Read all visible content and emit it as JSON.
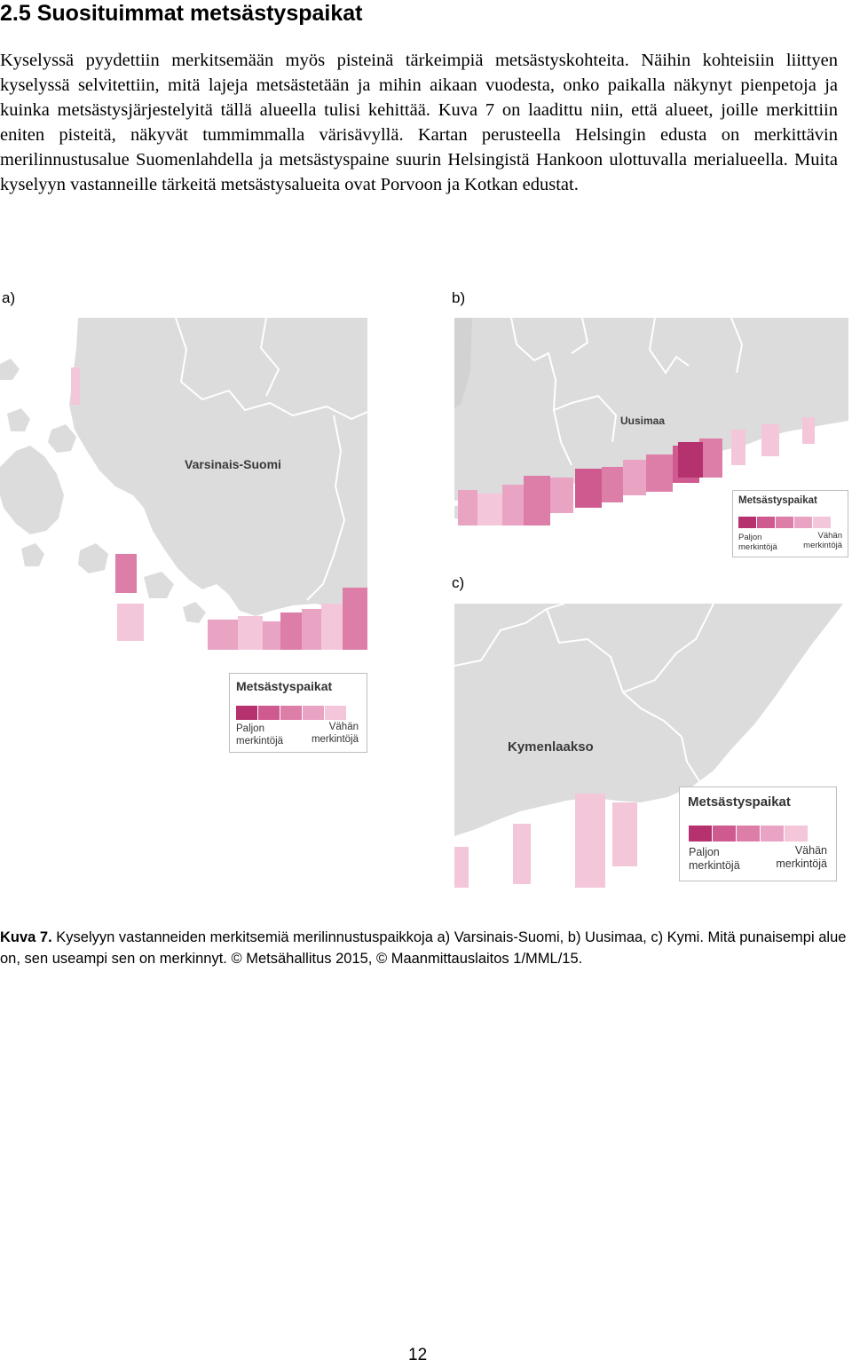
{
  "section": {
    "heading": "2.5 Suosituimmat metsästyspaikat",
    "body": "Kyselyssä pyydettiin merkitsemään myös pisteinä tärkeimpiä metsästyskohteita. Näihin kohteisiin liittyen kyselyssä selvitettiin, mitä lajeja metsästetään ja mihin aikaan vuodesta, onko paikalla näkynyt pienpetoja ja kuinka metsästysjärjestelyitä tällä alueella tulisi kehittää. Kuva 7 on laadittu niin, että alueet, joille merkittiin eniten pisteitä, näkyvät tummimmalla värisävyllä. Kartan perusteella Helsingin edusta on merkittävin merilinnustusalue Suomenlahdella ja metsästyspaine suurin Helsingistä Hankoon ulottuvalla merialueella. Muita kyselyyn vastanneille tärkeitä metsästysalueita ovat Porvoon ja Kotkan edustat."
  },
  "figure": {
    "panel_a": {
      "label": "a)",
      "region_label": "Varsinais-Suomi",
      "legend": {
        "title": "Metsästyspaikat",
        "low_label": "Paljon\nmerkintöjä",
        "high_label": "Vähän\nmerkintöjä"
      }
    },
    "panel_b": {
      "label": "b)",
      "region_label": "Uusimaa",
      "legend": {
        "title": "Metsästyspaikat",
        "low_label": "Paljon\nmerkintöjä",
        "high_label": "Vähän\nmerkintöjä"
      }
    },
    "panel_c": {
      "label": "c)",
      "region_label": "Kymenlaakso",
      "legend": {
        "title": "Metsästyspaikat",
        "low_label": "Paljon\nmerkintöjä",
        "high_label": "Vähän\nmerkintöjä"
      }
    },
    "legend_colors": [
      "#b5326f",
      "#cf5a8f",
      "#dd7ea9",
      "#e9a3c3",
      "#f3c6da"
    ],
    "colors": {
      "land": "#dcdcdc",
      "sea": "#ffffff",
      "border": "#ffffff"
    }
  },
  "caption": {
    "label": "Kuva 7.",
    "text": " Kyselyyn vastanneiden merkitsemiä merilinnustuspaikkoja a) Varsinais-Suomi, b) Uusimaa, c) Kymi. Mitä punaisempi alue on, sen useampi sen on merkinnyt. © Metsähallitus 2015, © Maanmittauslaitos 1/MML/15."
  },
  "page_number": "12"
}
